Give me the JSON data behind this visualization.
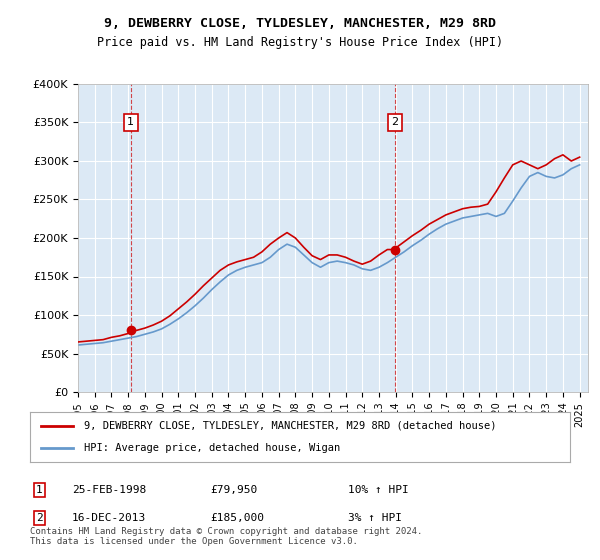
{
  "title": "9, DEWBERRY CLOSE, TYLDESLEY, MANCHESTER, M29 8RD",
  "subtitle": "Price paid vs. HM Land Registry's House Price Index (HPI)",
  "legend_line1": "9, DEWBERRY CLOSE, TYLDESLEY, MANCHESTER, M29 8RD (detached house)",
  "legend_line2": "HPI: Average price, detached house, Wigan",
  "annotation1_label": "1",
  "annotation1_date": "25-FEB-1998",
  "annotation1_price": "£79,950",
  "annotation1_hpi": "10% ↑ HPI",
  "annotation2_label": "2",
  "annotation2_date": "16-DEC-2013",
  "annotation2_price": "£185,000",
  "annotation2_hpi": "3% ↑ HPI",
  "copyright": "Contains HM Land Registry data © Crown copyright and database right 2024.\nThis data is licensed under the Open Government Licence v3.0.",
  "ylim": [
    0,
    400000
  ],
  "yticks": [
    0,
    50000,
    100000,
    150000,
    200000,
    250000,
    300000,
    350000,
    400000
  ],
  "ytick_labels": [
    "£0",
    "£50K",
    "£100K",
    "£150K",
    "£200K",
    "£250K",
    "£300K",
    "£350K",
    "£400K"
  ],
  "xlim_start": 1995.0,
  "xlim_end": 2025.5,
  "bg_color": "#dce9f5",
  "plot_bg": "#dce9f5",
  "red_color": "#cc0000",
  "blue_color": "#6699cc",
  "transaction1_x": 1998.15,
  "transaction1_y": 79950,
  "transaction2_x": 2013.96,
  "transaction2_y": 185000,
  "hpi_x": [
    1995,
    1995.5,
    1996,
    1996.5,
    1997,
    1997.5,
    1998,
    1998.5,
    1999,
    1999.5,
    2000,
    2000.5,
    2001,
    2001.5,
    2002,
    2002.5,
    2003,
    2003.5,
    2004,
    2004.5,
    2005,
    2005.5,
    2006,
    2006.5,
    2007,
    2007.5,
    2008,
    2008.5,
    2009,
    2009.5,
    2010,
    2010.5,
    2011,
    2011.5,
    2012,
    2012.5,
    2013,
    2013.5,
    2014,
    2014.5,
    2015,
    2015.5,
    2016,
    2016.5,
    2017,
    2017.5,
    2018,
    2018.5,
    2019,
    2019.5,
    2020,
    2020.5,
    2021,
    2021.5,
    2022,
    2022.5,
    2023,
    2023.5,
    2024,
    2024.5,
    2025
  ],
  "hpi_y": [
    61000,
    62000,
    63000,
    64000,
    66000,
    68000,
    70000,
    72000,
    75000,
    78000,
    82000,
    88000,
    95000,
    103000,
    112000,
    122000,
    133000,
    143000,
    152000,
    158000,
    162000,
    165000,
    168000,
    175000,
    185000,
    192000,
    188000,
    178000,
    168000,
    162000,
    168000,
    170000,
    168000,
    165000,
    160000,
    158000,
    162000,
    168000,
    175000,
    182000,
    190000,
    197000,
    205000,
    212000,
    218000,
    222000,
    226000,
    228000,
    230000,
    232000,
    228000,
    232000,
    248000,
    265000,
    280000,
    285000,
    280000,
    278000,
    282000,
    290000,
    295000
  ],
  "red_x": [
    1995,
    1995.5,
    1996,
    1996.5,
    1997,
    1997.5,
    1998,
    1998.15,
    1998.5,
    1999,
    1999.5,
    2000,
    2000.5,
    2001,
    2001.5,
    2002,
    2002.5,
    2003,
    2003.5,
    2004,
    2004.5,
    2005,
    2005.5,
    2006,
    2006.5,
    2007,
    2007.5,
    2008,
    2008.5,
    2009,
    2009.5,
    2010,
    2010.5,
    2011,
    2011.5,
    2012,
    2012.5,
    2013,
    2013.5,
    2013.96,
    2014,
    2014.5,
    2015,
    2015.5,
    2016,
    2016.5,
    2017,
    2017.5,
    2018,
    2018.5,
    2019,
    2019.5,
    2020,
    2020.5,
    2021,
    2021.5,
    2022,
    2022.5,
    2023,
    2023.5,
    2024,
    2024.5,
    2025
  ],
  "red_y": [
    65000,
    66000,
    67000,
    68000,
    71000,
    73000,
    76000,
    79950,
    80000,
    83000,
    87000,
    92000,
    99000,
    108000,
    117000,
    127000,
    138000,
    148000,
    158000,
    165000,
    169000,
    172000,
    175000,
    182000,
    192000,
    200000,
    207000,
    200000,
    188000,
    177000,
    172000,
    178000,
    178000,
    175000,
    170000,
    166000,
    170000,
    178000,
    185000,
    185000,
    187000,
    195000,
    203000,
    210000,
    218000,
    224000,
    230000,
    234000,
    238000,
    240000,
    241000,
    244000,
    260000,
    278000,
    295000,
    300000,
    295000,
    290000,
    295000,
    303000,
    308000,
    300000,
    305000
  ]
}
